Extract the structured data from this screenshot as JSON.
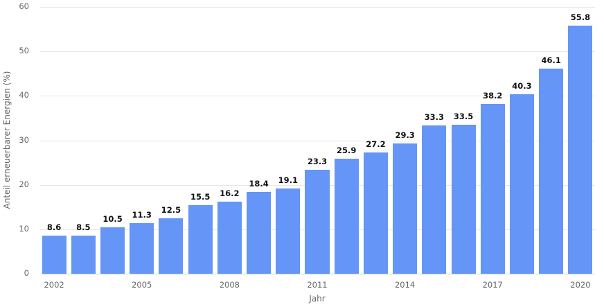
{
  "chart_data": {
    "type": "bar",
    "title": "",
    "xlabel": "Jahr",
    "ylabel": "Anteil erneuerbarer Energien (%)",
    "ylim": [
      0,
      60
    ],
    "yticks": [
      0,
      10,
      20,
      30,
      40,
      50,
      60
    ],
    "grid": true,
    "legend": null,
    "bar_color": "#6495f7",
    "categories": [
      "2002",
      "2003",
      "2004",
      "2005",
      "2006",
      "2007",
      "2008",
      "2009",
      "2010",
      "2011",
      "2012",
      "2013",
      "2014",
      "2015",
      "2016",
      "2017",
      "2018",
      "2019",
      "2020"
    ],
    "values": [
      8.6,
      8.5,
      10.5,
      11.3,
      12.5,
      15.5,
      16.2,
      18.4,
      19.1,
      23.3,
      25.9,
      27.2,
      29.3,
      33.3,
      33.5,
      38.2,
      40.3,
      46.1,
      55.8
    ],
    "value_labels": [
      "8.6",
      "8.5",
      "10.5",
      "11.3",
      "12.5",
      "15.5",
      "16.2",
      "18.4",
      "19.1",
      "23.3",
      "25.9",
      "27.2",
      "29.3",
      "33.3",
      "33.5",
      "38.2",
      "40.3",
      "46.1",
      "55.8"
    ],
    "xtick_labels": [
      {
        "index": 0,
        "label": "2002"
      },
      {
        "index": 3,
        "label": "2005"
      },
      {
        "index": 6,
        "label": "2008"
      },
      {
        "index": 9,
        "label": "2011"
      },
      {
        "index": 12,
        "label": "2014"
      },
      {
        "index": 15,
        "label": "2017"
      },
      {
        "index": 18,
        "label": "2020"
      }
    ]
  }
}
